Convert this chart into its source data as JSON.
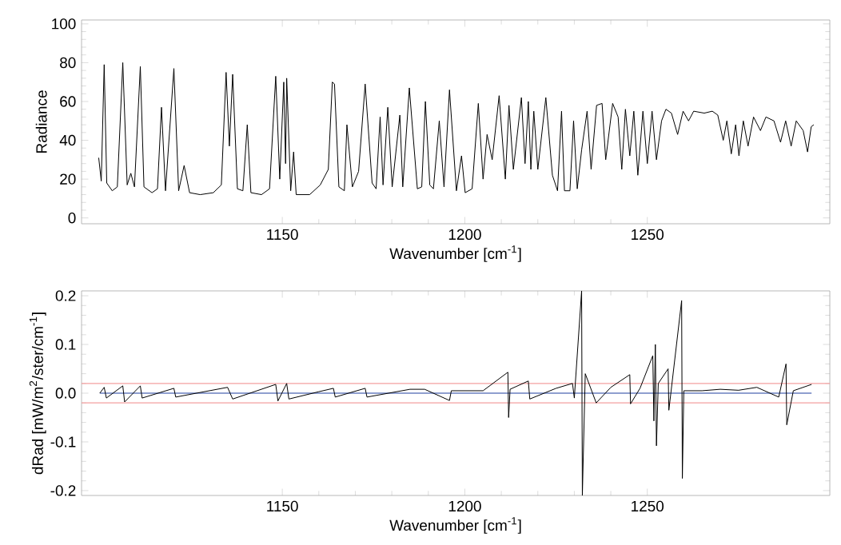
{
  "chart_data": [
    {
      "type": "line",
      "xlabel": "Wavenumber [cm$^{-1}$]",
      "ylabel": "Radiance",
      "xlim": [
        1095,
        1300
      ],
      "ylim": [
        -3,
        102
      ],
      "xticks": [
        1150,
        1200,
        1250
      ],
      "yticks": [
        0,
        20,
        40,
        60,
        80,
        100
      ],
      "grid": false,
      "series": [
        {
          "color": "#000000",
          "x": [
            1099.7,
            1100.4,
            1101.2,
            1101.9,
            1103.4,
            1104.8,
            1106.3,
            1107.5,
            1108.5,
            1109.5,
            1111.1,
            1112.1,
            1114.3,
            1115.8,
            1116.9,
            1118.0,
            1120.3,
            1121.6,
            1123.1,
            1124.6,
            1127.5,
            1131.1,
            1133.3,
            1134.6,
            1135.5,
            1136.4,
            1137.7,
            1139.2,
            1140.4,
            1141.4,
            1144.3,
            1146.5,
            1148.2,
            1149.3,
            1150.4,
            1150.9,
            1151.2,
            1152.3,
            1153.1,
            1153.8,
            1157.5,
            1160.4,
            1162.6,
            1163.7,
            1164.3,
            1165.5,
            1167.0,
            1167.7,
            1169.2,
            1170.9,
            1172.7,
            1174.6,
            1175.7,
            1176.8,
            1177.6,
            1178.9,
            1180.1,
            1182.2,
            1183.0,
            1184.8,
            1187.0,
            1188.2,
            1189.2,
            1190.4,
            1191.4,
            1193.0,
            1194.3,
            1195.8,
            1197.7,
            1199.1,
            1200.1,
            1202.0,
            1203.7,
            1205.0,
            1206.1,
            1207.5,
            1209.4,
            1211.1,
            1212.1,
            1213.3,
            1215.5,
            1216.5,
            1217.4,
            1218.1,
            1218.9,
            1220.0,
            1222.2,
            1224.0,
            1225.4,
            1226.5,
            1227.3,
            1228.8,
            1229.8,
            1230.8,
            1232.0,
            1233.5,
            1234.6,
            1236.1,
            1237.6,
            1238.6,
            1240.5,
            1242.0,
            1243.0,
            1244.0,
            1245.2,
            1246.3,
            1247.4,
            1248.8,
            1250.0,
            1251.3,
            1252.5,
            1253.9,
            1255.1,
            1256.6,
            1258.3,
            1259.8,
            1261.3,
            1262.7,
            1265.6,
            1267.8,
            1269.3,
            1270.8,
            1271.8,
            1273.0,
            1274.2,
            1275.1,
            1276.3,
            1277.6,
            1279.1,
            1281.0,
            1282.5,
            1284.7,
            1286.5,
            1287.9,
            1289.4,
            1290.8,
            1292.7,
            1293.9,
            1294.9,
            1295.6
          ],
          "values": [
            31,
            19,
            79,
            18,
            14,
            16,
            80,
            17,
            23,
            16,
            78,
            16,
            13,
            15,
            57,
            14,
            77,
            14,
            27,
            13,
            12,
            13,
            17,
            75,
            37,
            74,
            15,
            14,
            48,
            13,
            12,
            15,
            73,
            20,
            70,
            28,
            72,
            14,
            34,
            12,
            12,
            17,
            25,
            70,
            69,
            16,
            14,
            48,
            16,
            24,
            69,
            18,
            15,
            52,
            17,
            57,
            16,
            53,
            16,
            67,
            15,
            16,
            60,
            17,
            15,
            50,
            16,
            66,
            14,
            32,
            13,
            15,
            59,
            20,
            43,
            30,
            63,
            20,
            58,
            25,
            62,
            28,
            60,
            25,
            55,
            25,
            62,
            22,
            14,
            55,
            14,
            14,
            50,
            15,
            35,
            55,
            25,
            58,
            59,
            30,
            59,
            52,
            25,
            56,
            32,
            55,
            22,
            55,
            28,
            55,
            30,
            50,
            56,
            54,
            43,
            55,
            50,
            55,
            54,
            55,
            53,
            40,
            50,
            33,
            48,
            32,
            50,
            37,
            52,
            45,
            52,
            50,
            39,
            50,
            37,
            50,
            45,
            34,
            47,
            48
          ]
        }
      ]
    },
    {
      "type": "line",
      "xlabel": "Wavenumber [cm$^{-1}$]",
      "ylabel": "dRad [mW/m$^{2}$/ster/cm$^{-1}$]",
      "xlim": [
        1095,
        1300
      ],
      "ylim": [
        -0.21,
        0.21
      ],
      "xticks": [
        1150,
        1200,
        1250
      ],
      "yticks": [
        -0.2,
        -0.1,
        {
          "value": 0,
          "label": "0.0"
        },
        0.1,
        0.2
      ],
      "grid": false,
      "ref_lines": [
        {
          "axis": "y",
          "value": 0.02,
          "color": "#f4a0a0"
        },
        {
          "axis": "y",
          "value": -0.02,
          "color": "#f4a0a0"
        }
      ],
      "series": [
        {
          "color": "#1f3f9f",
          "x": [
            1100,
            1295
          ],
          "values": [
            0,
            0
          ]
        },
        {
          "color": "#000000",
          "x": [
            1100,
            1101.2,
            1101.8,
            1106.3,
            1106.8,
            1111.1,
            1111.6,
            1120.3,
            1120.8,
            1135,
            1136.4,
            1148.2,
            1148.8,
            1151.2,
            1151.8,
            1160,
            1164,
            1164.5,
            1172.7,
            1173.2,
            1185,
            1189,
            1195.8,
            1196.3,
            1205,
            1211.8,
            1212.0,
            1212.4,
            1217.4,
            1217.8,
            1225,
            1229.5,
            1230,
            1232.0,
            1232.2,
            1233,
            1236,
            1240,
            1245.2,
            1245.4,
            1248,
            1251.5,
            1251.8,
            1252.2,
            1252.5,
            1253.0,
            1255.7,
            1255.9,
            1259.4,
            1259.6,
            1260,
            1265,
            1270,
            1275,
            1280,
            1286,
            1288.0,
            1288.2,
            1290,
            1295
          ],
          "values": [
            0,
            0.012,
            -0.01,
            0.015,
            -0.018,
            0.015,
            -0.01,
            0.01,
            -0.008,
            0.012,
            -0.012,
            0.018,
            -0.016,
            0.02,
            -0.012,
            0.003,
            0.01,
            -0.008,
            0.01,
            -0.008,
            0.008,
            0.008,
            -0.015,
            0.005,
            0.005,
            0.043,
            -0.05,
            0.008,
            0.025,
            -0.012,
            0.01,
            0.02,
            -0.01,
            0.21,
            -0.21,
            0.04,
            -0.02,
            0.012,
            0.038,
            -0.022,
            0.01,
            0.077,
            -0.057,
            0.1,
            -0.108,
            0.02,
            0.05,
            -0.035,
            0.19,
            -0.175,
            0.005,
            0.005,
            0.008,
            0.006,
            0.012,
            -0.008,
            0.06,
            -0.065,
            0.005,
            0.018
          ]
        }
      ]
    }
  ]
}
